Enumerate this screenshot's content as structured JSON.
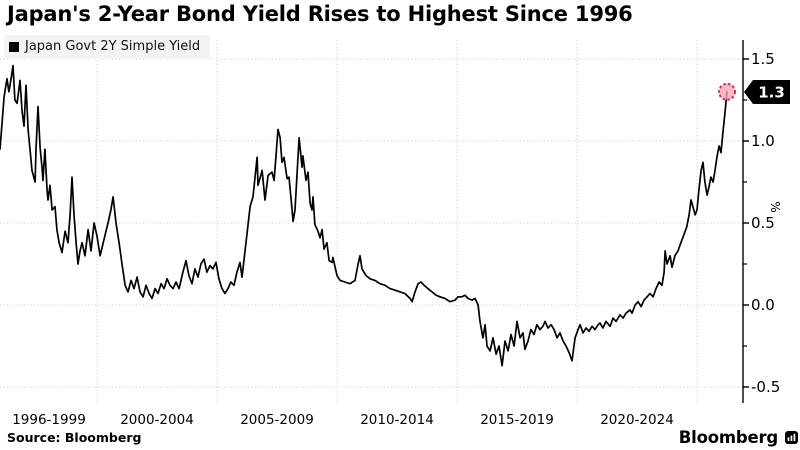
{
  "title": "Japan's 2-Year Bond Yield Rises to Highest Since 1996",
  "legend": {
    "series_label": "Japan Govt 2Y Simple Yield",
    "swatch_color": "#000000",
    "bg_color": "#f3f3f1"
  },
  "footer": {
    "source": "Source: Bloomberg",
    "brand": "Bloomberg"
  },
  "last_value": {
    "label": "1.3",
    "dot_fill": "#f5a7b4",
    "dot_stroke": "#d2344e",
    "tag_bg": "#000000",
    "tag_text_color": "#ffffff"
  },
  "colors": {
    "line": "#000000",
    "grid": "#c9c9c9",
    "axis": "#000000",
    "tick_text": "#000000"
  },
  "chart_data": {
    "type": "line",
    "title": "Japan's 2-Year Bond Yield Rises to Highest Since 1996",
    "xlabel": "",
    "ylabel": "%",
    "grid": "dotted",
    "legend_position": "top-left",
    "ylim": [
      -0.66,
      1.62
    ],
    "xlim": [
      1995.95,
      2026.9
    ],
    "y_ticks": [
      {
        "value": 1.5,
        "label": "1.5"
      },
      {
        "value": 1.0,
        "label": "1.0"
      },
      {
        "value": 0.5,
        "label": "0.5"
      },
      {
        "value": 0.0,
        "label": "0.0"
      },
      {
        "value": -0.5,
        "label": "-0.5"
      }
    ],
    "y_minor_ticks": [
      1.25,
      0.75,
      0.25,
      -0.25
    ],
    "x_gridlines": [
      2000,
      2005,
      2010,
      2015,
      2020,
      2025
    ],
    "x_ticks": [
      {
        "center_year": 1998.0,
        "label": "1996-1999"
      },
      {
        "center_year": 2002.5,
        "label": "2000-2004"
      },
      {
        "center_year": 2007.5,
        "label": "2005-2009"
      },
      {
        "center_year": 2012.5,
        "label": "2010-2014"
      },
      {
        "center_year": 2017.5,
        "label": "2015-2019"
      },
      {
        "center_year": 2022.5,
        "label": "2020-2024"
      }
    ],
    "last_point": {
      "x": 2026.25,
      "value": 1.3,
      "label": "1.3"
    },
    "series": [
      {
        "name": "Japan Govt 2Y Simple Yield",
        "color": "#000000",
        "points": [
          [
            1995.96,
            0.95
          ],
          [
            1996.13,
            1.27
          ],
          [
            1996.25,
            1.38
          ],
          [
            1996.33,
            1.3
          ],
          [
            1996.42,
            1.38
          ],
          [
            1996.5,
            1.46
          ],
          [
            1996.58,
            1.25
          ],
          [
            1996.67,
            1.23
          ],
          [
            1996.79,
            1.37
          ],
          [
            1996.88,
            1.18
          ],
          [
            1996.96,
            1.09
          ],
          [
            1997.04,
            1.34
          ],
          [
            1997.13,
            1.07
          ],
          [
            1997.21,
            0.95
          ],
          [
            1997.29,
            0.82
          ],
          [
            1997.42,
            0.75
          ],
          [
            1997.46,
            0.95
          ],
          [
            1997.54,
            1.21
          ],
          [
            1997.63,
            0.96
          ],
          [
            1997.71,
            0.84
          ],
          [
            1997.75,
            0.76
          ],
          [
            1997.83,
            0.95
          ],
          [
            1997.92,
            0.7
          ],
          [
            1997.96,
            0.64
          ],
          [
            1998.04,
            0.73
          ],
          [
            1998.13,
            0.58
          ],
          [
            1998.25,
            0.6
          ],
          [
            1998.33,
            0.46
          ],
          [
            1998.42,
            0.38
          ],
          [
            1998.54,
            0.32
          ],
          [
            1998.67,
            0.45
          ],
          [
            1998.79,
            0.38
          ],
          [
            1998.88,
            0.55
          ],
          [
            1998.96,
            0.78
          ],
          [
            1999.04,
            0.55
          ],
          [
            1999.13,
            0.38
          ],
          [
            1999.21,
            0.25
          ],
          [
            1999.29,
            0.33
          ],
          [
            1999.38,
            0.38
          ],
          [
            1999.5,
            0.3
          ],
          [
            1999.63,
            0.46
          ],
          [
            1999.75,
            0.33
          ],
          [
            1999.88,
            0.5
          ],
          [
            2000.0,
            0.42
          ],
          [
            2000.13,
            0.3
          ],
          [
            2000.29,
            0.4
          ],
          [
            2000.46,
            0.5
          ],
          [
            2000.58,
            0.58
          ],
          [
            2000.67,
            0.66
          ],
          [
            2000.79,
            0.5
          ],
          [
            2000.92,
            0.38
          ],
          [
            2001.04,
            0.25
          ],
          [
            2001.17,
            0.12
          ],
          [
            2001.29,
            0.08
          ],
          [
            2001.42,
            0.15
          ],
          [
            2001.54,
            0.1
          ],
          [
            2001.67,
            0.17
          ],
          [
            2001.79,
            0.08
          ],
          [
            2001.92,
            0.05
          ],
          [
            2002.04,
            0.12
          ],
          [
            2002.17,
            0.07
          ],
          [
            2002.29,
            0.04
          ],
          [
            2002.42,
            0.1
          ],
          [
            2002.54,
            0.07
          ],
          [
            2002.67,
            0.13
          ],
          [
            2002.79,
            0.1
          ],
          [
            2002.92,
            0.16
          ],
          [
            2003.04,
            0.12
          ],
          [
            2003.17,
            0.1
          ],
          [
            2003.29,
            0.14
          ],
          [
            2003.42,
            0.1
          ],
          [
            2003.58,
            0.2
          ],
          [
            2003.71,
            0.27
          ],
          [
            2003.83,
            0.18
          ],
          [
            2003.96,
            0.13
          ],
          [
            2004.08,
            0.22
          ],
          [
            2004.21,
            0.17
          ],
          [
            2004.33,
            0.25
          ],
          [
            2004.46,
            0.28
          ],
          [
            2004.58,
            0.2
          ],
          [
            2004.71,
            0.24
          ],
          [
            2004.83,
            0.22
          ],
          [
            2004.96,
            0.26
          ],
          [
            2005.08,
            0.16
          ],
          [
            2005.21,
            0.1
          ],
          [
            2005.33,
            0.07
          ],
          [
            2005.46,
            0.1
          ],
          [
            2005.58,
            0.14
          ],
          [
            2005.71,
            0.12
          ],
          [
            2005.83,
            0.2
          ],
          [
            2005.96,
            0.26
          ],
          [
            2006.04,
            0.17
          ],
          [
            2006.21,
            0.38
          ],
          [
            2006.38,
            0.6
          ],
          [
            2006.5,
            0.66
          ],
          [
            2006.67,
            0.9
          ],
          [
            2006.71,
            0.73
          ],
          [
            2006.88,
            0.82
          ],
          [
            2007.0,
            0.64
          ],
          [
            2007.13,
            0.79
          ],
          [
            2007.29,
            0.81
          ],
          [
            2007.38,
            0.76
          ],
          [
            2007.54,
            1.07
          ],
          [
            2007.63,
            1.02
          ],
          [
            2007.71,
            0.87
          ],
          [
            2007.79,
            0.9
          ],
          [
            2007.92,
            0.77
          ],
          [
            2008.0,
            0.78
          ],
          [
            2008.13,
            0.58
          ],
          [
            2008.17,
            0.51
          ],
          [
            2008.25,
            0.58
          ],
          [
            2008.42,
            1.02
          ],
          [
            2008.54,
            0.84
          ],
          [
            2008.58,
            0.91
          ],
          [
            2008.71,
            0.76
          ],
          [
            2008.79,
            0.81
          ],
          [
            2008.88,
            0.62
          ],
          [
            2008.96,
            0.58
          ],
          [
            2009.0,
            0.66
          ],
          [
            2009.08,
            0.49
          ],
          [
            2009.21,
            0.45
          ],
          [
            2009.29,
            0.41
          ],
          [
            2009.38,
            0.46
          ],
          [
            2009.46,
            0.34
          ],
          [
            2009.58,
            0.38
          ],
          [
            2009.67,
            0.27
          ],
          [
            2009.79,
            0.26
          ],
          [
            2009.83,
            0.29
          ],
          [
            2010.0,
            0.18
          ],
          [
            2010.13,
            0.15
          ],
          [
            2010.33,
            0.14
          ],
          [
            2010.54,
            0.13
          ],
          [
            2010.75,
            0.15
          ],
          [
            2010.88,
            0.25
          ],
          [
            2010.96,
            0.3
          ],
          [
            2011.04,
            0.22
          ],
          [
            2011.21,
            0.18
          ],
          [
            2011.38,
            0.16
          ],
          [
            2011.58,
            0.15
          ],
          [
            2011.79,
            0.13
          ],
          [
            2012.0,
            0.12
          ],
          [
            2012.21,
            0.1
          ],
          [
            2012.42,
            0.09
          ],
          [
            2012.63,
            0.08
          ],
          [
            2012.83,
            0.07
          ],
          [
            2013.04,
            0.04
          ],
          [
            2013.13,
            0.02
          ],
          [
            2013.25,
            0.08
          ],
          [
            2013.38,
            0.13
          ],
          [
            2013.5,
            0.14
          ],
          [
            2013.63,
            0.12
          ],
          [
            2013.79,
            0.1
          ],
          [
            2013.96,
            0.08
          ],
          [
            2014.13,
            0.06
          ],
          [
            2014.29,
            0.05
          ],
          [
            2014.5,
            0.04
          ],
          [
            2014.71,
            0.02
          ],
          [
            2014.92,
            0.03
          ],
          [
            2015.04,
            0.05
          ],
          [
            2015.21,
            0.05
          ],
          [
            2015.33,
            0.06
          ],
          [
            2015.46,
            0.04
          ],
          [
            2015.63,
            0.03
          ],
          [
            2015.75,
            0.04
          ],
          [
            2015.88,
            0.0
          ],
          [
            2015.96,
            -0.1
          ],
          [
            2016.08,
            -0.2
          ],
          [
            2016.17,
            -0.12
          ],
          [
            2016.25,
            -0.25
          ],
          [
            2016.38,
            -0.28
          ],
          [
            2016.5,
            -0.2
          ],
          [
            2016.63,
            -0.3
          ],
          [
            2016.75,
            -0.25
          ],
          [
            2016.88,
            -0.37
          ],
          [
            2017.0,
            -0.22
          ],
          [
            2017.13,
            -0.28
          ],
          [
            2017.25,
            -0.18
          ],
          [
            2017.38,
            -0.25
          ],
          [
            2017.5,
            -0.1
          ],
          [
            2017.63,
            -0.2
          ],
          [
            2017.75,
            -0.17
          ],
          [
            2017.83,
            -0.27
          ],
          [
            2017.96,
            -0.22
          ],
          [
            2018.08,
            -0.15
          ],
          [
            2018.21,
            -0.18
          ],
          [
            2018.33,
            -0.12
          ],
          [
            2018.46,
            -0.15
          ],
          [
            2018.58,
            -0.13
          ],
          [
            2018.67,
            -0.1
          ],
          [
            2018.79,
            -0.14
          ],
          [
            2018.92,
            -0.12
          ],
          [
            2019.04,
            -0.15
          ],
          [
            2019.17,
            -0.2
          ],
          [
            2019.29,
            -0.17
          ],
          [
            2019.42,
            -0.22
          ],
          [
            2019.54,
            -0.25
          ],
          [
            2019.67,
            -0.29
          ],
          [
            2019.79,
            -0.34
          ],
          [
            2019.92,
            -0.2
          ],
          [
            2020.04,
            -0.15
          ],
          [
            2020.13,
            -0.12
          ],
          [
            2020.25,
            -0.17
          ],
          [
            2020.38,
            -0.14
          ],
          [
            2020.5,
            -0.16
          ],
          [
            2020.63,
            -0.13
          ],
          [
            2020.75,
            -0.15
          ],
          [
            2020.88,
            -0.12
          ],
          [
            2020.96,
            -0.11
          ],
          [
            2021.08,
            -0.14
          ],
          [
            2021.21,
            -0.1
          ],
          [
            2021.38,
            -0.13
          ],
          [
            2021.5,
            -0.08
          ],
          [
            2021.63,
            -0.1
          ],
          [
            2021.79,
            -0.06
          ],
          [
            2021.92,
            -0.08
          ],
          [
            2022.04,
            -0.05
          ],
          [
            2022.21,
            -0.03
          ],
          [
            2022.29,
            -0.05
          ],
          [
            2022.42,
            0.0
          ],
          [
            2022.54,
            0.02
          ],
          [
            2022.67,
            -0.01
          ],
          [
            2022.79,
            0.03
          ],
          [
            2022.92,
            0.05
          ],
          [
            2023.04,
            0.07
          ],
          [
            2023.17,
            0.05
          ],
          [
            2023.29,
            0.1
          ],
          [
            2023.42,
            0.14
          ],
          [
            2023.54,
            0.12
          ],
          [
            2023.63,
            0.2
          ],
          [
            2023.67,
            0.33
          ],
          [
            2023.75,
            0.25
          ],
          [
            2023.88,
            0.3
          ],
          [
            2023.96,
            0.23
          ],
          [
            2024.08,
            0.3
          ],
          [
            2024.21,
            0.33
          ],
          [
            2024.33,
            0.38
          ],
          [
            2024.46,
            0.43
          ],
          [
            2024.58,
            0.48
          ],
          [
            2024.67,
            0.55
          ],
          [
            2024.75,
            0.64
          ],
          [
            2024.83,
            0.6
          ],
          [
            2024.92,
            0.55
          ],
          [
            2025.0,
            0.58
          ],
          [
            2025.08,
            0.7
          ],
          [
            2025.17,
            0.82
          ],
          [
            2025.25,
            0.87
          ],
          [
            2025.33,
            0.75
          ],
          [
            2025.42,
            0.67
          ],
          [
            2025.5,
            0.72
          ],
          [
            2025.58,
            0.78
          ],
          [
            2025.67,
            0.75
          ],
          [
            2025.75,
            0.82
          ],
          [
            2025.83,
            0.9
          ],
          [
            2025.92,
            0.97
          ],
          [
            2026.0,
            0.93
          ],
          [
            2026.08,
            1.05
          ],
          [
            2026.17,
            1.18
          ],
          [
            2026.25,
            1.3
          ]
        ]
      }
    ]
  }
}
